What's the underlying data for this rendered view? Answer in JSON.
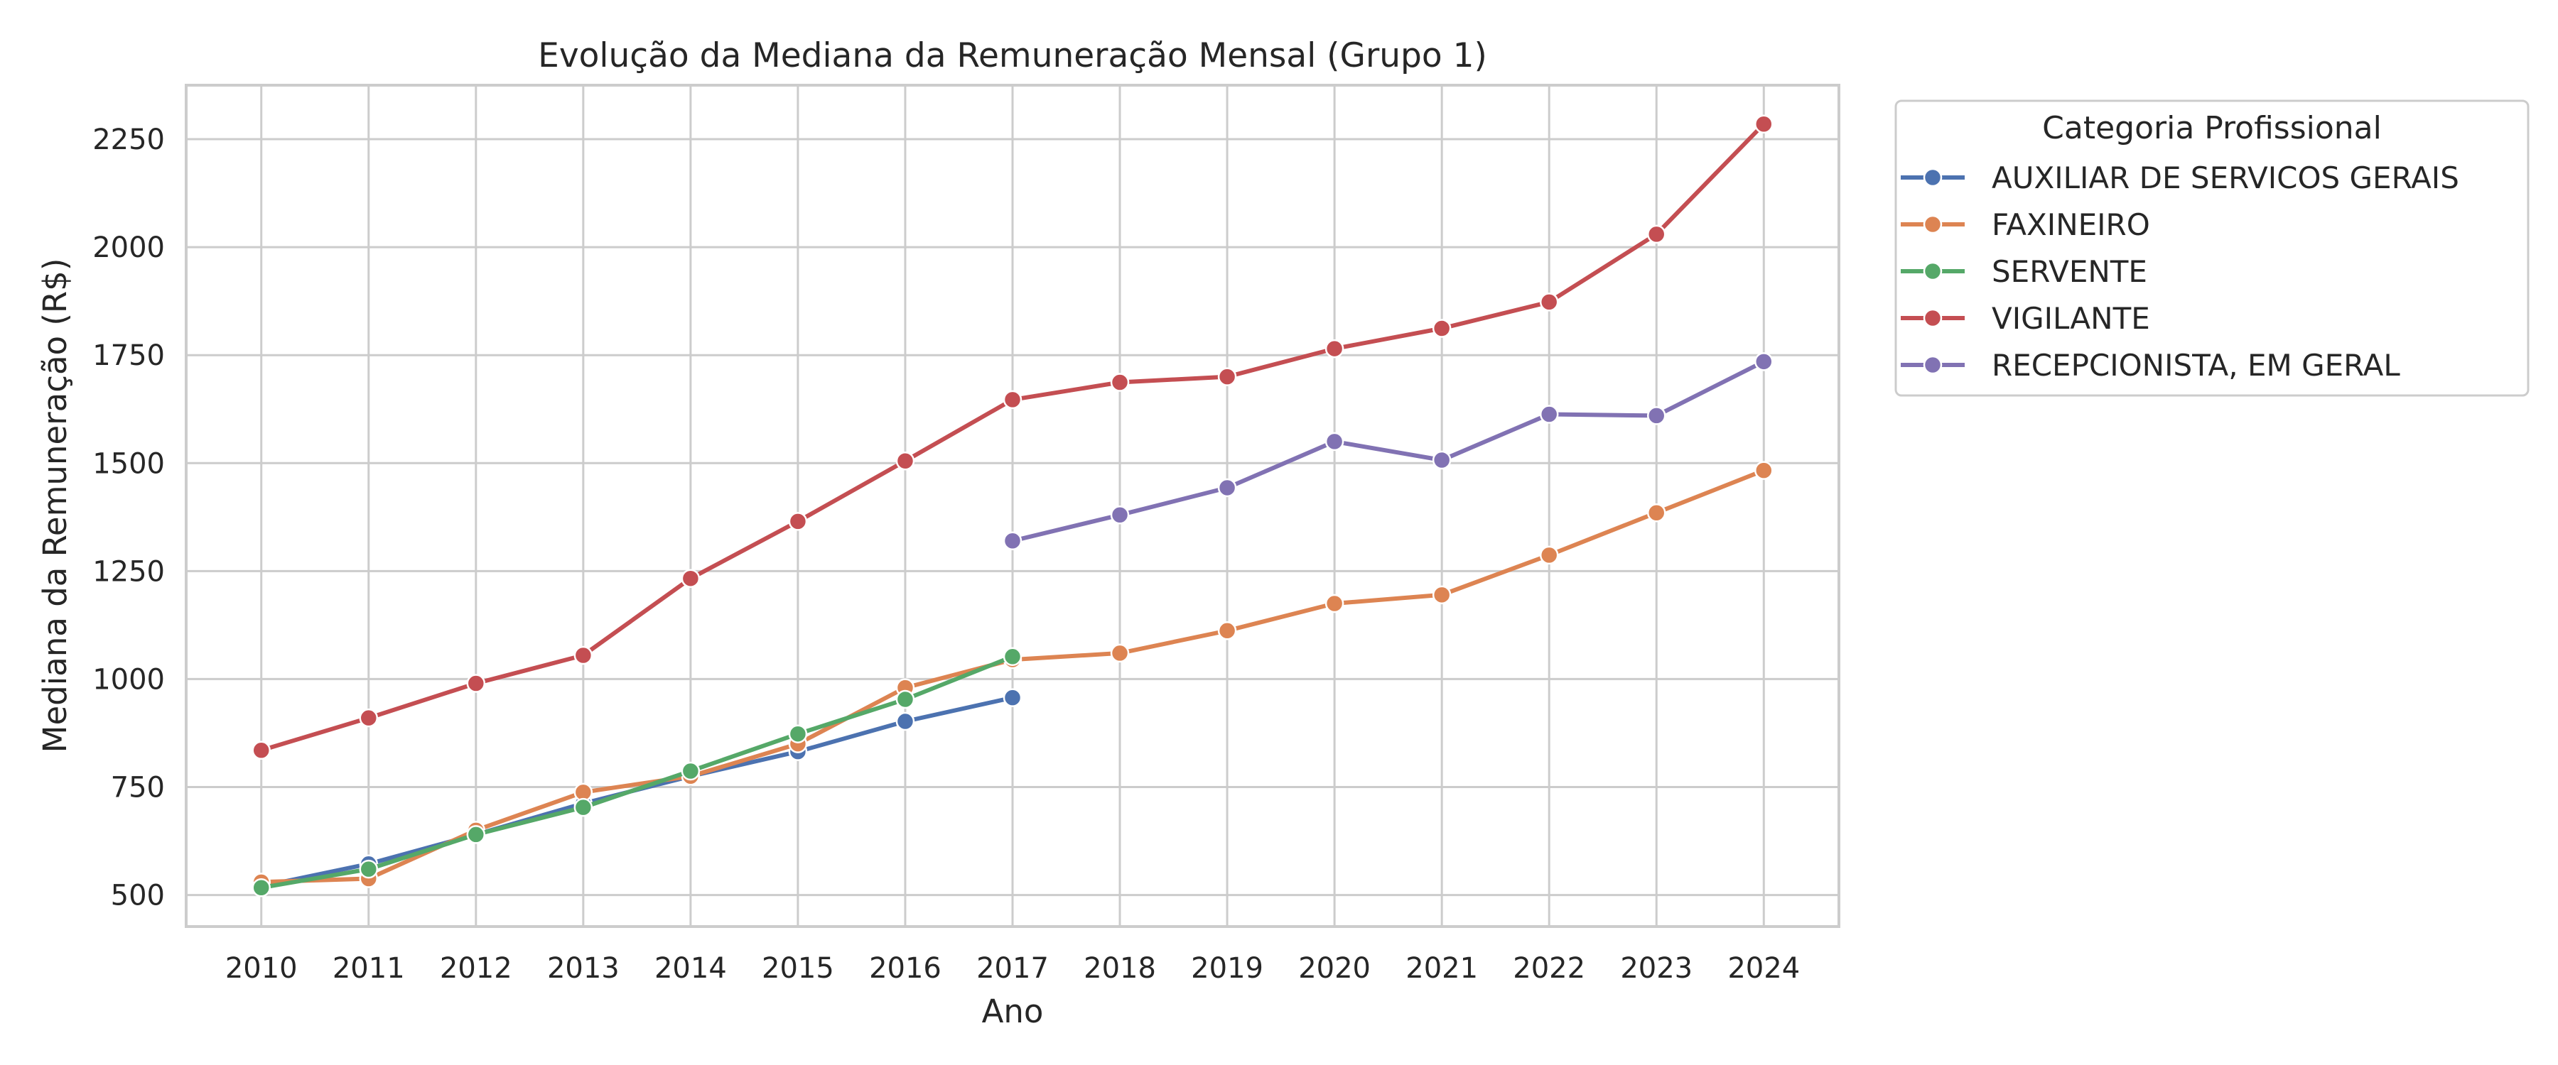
{
  "chart_data": {
    "type": "line",
    "title": "Evolução da Mediana da Remuneração Mensal (Grupo 1)",
    "xlabel": "Ano",
    "ylabel": "Mediana da Remuneração (R$)",
    "x": [
      2010,
      2011,
      2012,
      2013,
      2014,
      2015,
      2016,
      2017,
      2018,
      2019,
      2020,
      2021,
      2022,
      2023,
      2024
    ],
    "x_tick_labels": [
      "2010",
      "2011",
      "2012",
      "2013",
      "2014",
      "2015",
      "2016",
      "2017",
      "2018",
      "2019",
      "2020",
      "2021",
      "2022",
      "2023",
      "2024"
    ],
    "y_ticks": [
      500,
      750,
      1000,
      1250,
      1500,
      1750,
      2000,
      2250
    ],
    "y_tick_labels": [
      "500",
      "750",
      "1000",
      "1250",
      "1500",
      "1750",
      "2000",
      "2250"
    ],
    "xlim": [
      2009.3,
      2024.7
    ],
    "ylim": [
      427,
      2375
    ],
    "grid": true,
    "legend_position": "outside-right",
    "legend_title": "Categoria Profissional",
    "series": [
      {
        "name": "AUXILIAR DE SERVICOS GERAIS",
        "color": "#4c72b0",
        "points": [
          [
            2010,
            520
          ],
          [
            2011,
            572
          ],
          [
            2012,
            640
          ],
          [
            2013,
            712
          ],
          [
            2014,
            775
          ],
          [
            2015,
            832
          ],
          [
            2016,
            902
          ],
          [
            2017,
            957
          ]
        ]
      },
      {
        "name": "FAXINEIRO",
        "color": "#dd8452",
        "points": [
          [
            2010,
            530
          ],
          [
            2011,
            538
          ],
          [
            2012,
            650
          ],
          [
            2013,
            738
          ],
          [
            2014,
            775
          ],
          [
            2015,
            850
          ],
          [
            2016,
            980
          ],
          [
            2017,
            1045
          ],
          [
            2018,
            1060
          ],
          [
            2019,
            1112
          ],
          [
            2020,
            1175
          ],
          [
            2021,
            1195
          ],
          [
            2022,
            1287
          ],
          [
            2023,
            1385
          ],
          [
            2024,
            1483
          ]
        ]
      },
      {
        "name": "SERVENTE",
        "color": "#55a868",
        "points": [
          [
            2010,
            517
          ],
          [
            2011,
            560
          ],
          [
            2012,
            640
          ],
          [
            2013,
            703
          ],
          [
            2014,
            787
          ],
          [
            2015,
            873
          ],
          [
            2016,
            953
          ],
          [
            2017,
            1052
          ]
        ]
      },
      {
        "name": "VIGILANTE",
        "color": "#c44e52",
        "points": [
          [
            2010,
            835
          ],
          [
            2011,
            910
          ],
          [
            2012,
            990
          ],
          [
            2013,
            1055
          ],
          [
            2014,
            1233
          ],
          [
            2015,
            1365
          ],
          [
            2016,
            1505
          ],
          [
            2017,
            1647
          ],
          [
            2018,
            1687
          ],
          [
            2019,
            1700
          ],
          [
            2020,
            1765
          ],
          [
            2021,
            1812
          ],
          [
            2022,
            1873
          ],
          [
            2023,
            2030
          ],
          [
            2024,
            2285
          ]
        ]
      },
      {
        "name": "RECEPCIONISTA, EM GERAL",
        "color": "#8172b3",
        "points": [
          [
            2017,
            1320
          ],
          [
            2018,
            1380
          ],
          [
            2019,
            1443
          ],
          [
            2020,
            1550
          ],
          [
            2021,
            1507
          ],
          [
            2022,
            1613
          ],
          [
            2023,
            1610
          ],
          [
            2024,
            1735
          ]
        ]
      }
    ]
  }
}
